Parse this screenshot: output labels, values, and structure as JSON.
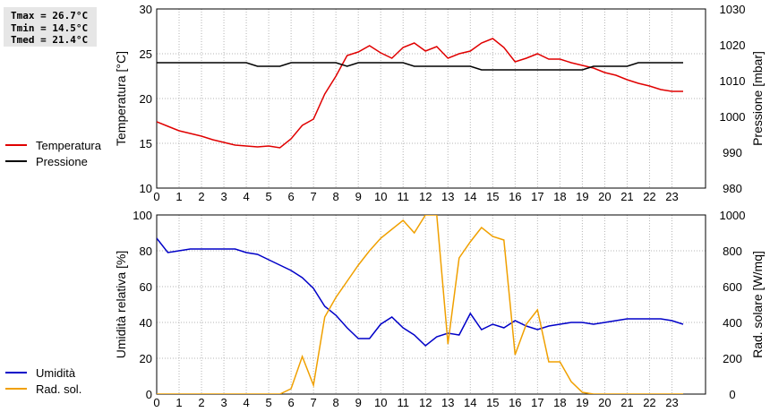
{
  "stats": {
    "tmax": "Tmax = 26.7°C",
    "tmin": "Tmin = 14.5°C",
    "tmed": "Tmed = 21.4°C"
  },
  "colors": {
    "red": "#e00000",
    "black": "#000000",
    "blue": "#0000c8",
    "orange": "#f0a000",
    "grid": "#b4b4b4"
  },
  "chart_data": [
    {
      "type": "line",
      "x": [
        0,
        0.5,
        1,
        1.5,
        2,
        2.5,
        3,
        3.5,
        4,
        4.5,
        5,
        5.5,
        6,
        6.5,
        7,
        7.5,
        8,
        8.5,
        9,
        9.5,
        10,
        10.5,
        11,
        11.5,
        12,
        12.5,
        13,
        13.5,
        14,
        14.5,
        15,
        15.5,
        16,
        16.5,
        17,
        17.5,
        18,
        18.5,
        19,
        19.5,
        20,
        20.5,
        21,
        21.5,
        22,
        22.5,
        23,
        23.5
      ],
      "xticks": [
        "0",
        "1",
        "2",
        "3",
        "4",
        "5",
        "6",
        "7",
        "8",
        "9",
        "10",
        "11",
        "12",
        "13",
        "14",
        "15",
        "16",
        "17",
        "18",
        "19",
        "20",
        "21",
        "22",
        "23"
      ],
      "xlim": [
        0,
        24.5
      ],
      "ylabel": "Temperatura [°C]",
      "ylim": [
        10,
        30
      ],
      "yticks": [
        "10",
        "15",
        "20",
        "25",
        "30"
      ],
      "y2label": "Pressione [mbar]",
      "y2lim": [
        980,
        1030
      ],
      "y2ticks": [
        "980",
        "990",
        "1000",
        "1010",
        "1020",
        "1030"
      ],
      "grid": true,
      "legend_position": "left",
      "series": [
        {
          "name": "Temperatura",
          "axis": "left",
          "color": "#e00000",
          "values": [
            17.4,
            16.9,
            16.4,
            16.1,
            15.8,
            15.4,
            15.1,
            14.8,
            14.7,
            14.6,
            14.7,
            14.5,
            15.5,
            17.0,
            17.7,
            20.5,
            22.5,
            24.8,
            25.2,
            25.9,
            25.1,
            24.5,
            25.7,
            26.2,
            25.3,
            25.8,
            24.5,
            25.0,
            25.3,
            26.2,
            26.7,
            25.7,
            24.1,
            24.5,
            25.0,
            24.4,
            24.4,
            24.0,
            23.7,
            23.4,
            22.9,
            22.6,
            22.1,
            21.7,
            21.4,
            21.0,
            20.8,
            20.8
          ]
        },
        {
          "name": "Pressione",
          "axis": "right",
          "color": "#000000",
          "values": [
            1015,
            1015,
            1015,
            1015,
            1015,
            1015,
            1015,
            1015,
            1015,
            1014,
            1014,
            1014,
            1015,
            1015,
            1015,
            1015,
            1015,
            1014,
            1015,
            1015,
            1015,
            1015,
            1015,
            1014,
            1014,
            1014,
            1014,
            1014,
            1014,
            1013,
            1013,
            1013,
            1013,
            1013,
            1013,
            1013,
            1013,
            1013,
            1013,
            1014,
            1014,
            1014,
            1014,
            1015,
            1015,
            1015,
            1015,
            1015
          ]
        }
      ]
    },
    {
      "type": "line",
      "x": [
        0,
        0.5,
        1,
        1.5,
        2,
        2.5,
        3,
        3.5,
        4,
        4.5,
        5,
        5.5,
        6,
        6.5,
        7,
        7.5,
        8,
        8.5,
        9,
        9.5,
        10,
        10.5,
        11,
        11.5,
        12,
        12.5,
        13,
        13.5,
        14,
        14.5,
        15,
        15.5,
        16,
        16.5,
        17,
        17.5,
        18,
        18.5,
        19,
        19.5,
        20,
        20.5,
        21,
        21.5,
        22,
        22.5,
        23,
        23.5
      ],
      "xticks": [
        "0",
        "1",
        "2",
        "3",
        "4",
        "5",
        "6",
        "7",
        "8",
        "9",
        "10",
        "11",
        "12",
        "13",
        "14",
        "15",
        "16",
        "17",
        "18",
        "19",
        "20",
        "21",
        "22",
        "23"
      ],
      "xlim": [
        0,
        24.5
      ],
      "ylabel": "Umidità relativa [%]",
      "ylim": [
        0,
        100
      ],
      "yticks": [
        "0",
        "20",
        "40",
        "60",
        "80",
        "100"
      ],
      "y2label": "Rad. solare [W/mq]",
      "y2lim": [
        0,
        1000
      ],
      "y2ticks": [
        "0",
        "200",
        "400",
        "600",
        "800",
        "1000"
      ],
      "grid": true,
      "legend_position": "left",
      "series": [
        {
          "name": "Umidità",
          "axis": "left",
          "color": "#0000c8",
          "values": [
            87,
            79,
            80,
            81,
            81,
            81,
            81,
            81,
            79,
            78,
            75,
            72,
            69,
            65,
            59,
            49,
            44,
            37,
            31,
            31,
            39,
            43,
            37,
            33,
            27,
            32,
            34,
            33,
            45,
            36,
            39,
            37,
            41,
            38,
            36,
            38,
            39,
            40,
            40,
            39,
            40,
            41,
            42,
            42,
            42,
            42,
            41,
            39
          ]
        },
        {
          "name": "Rad. sol.",
          "axis": "right",
          "color": "#f0a000",
          "values": [
            0,
            0,
            0,
            0,
            0,
            0,
            0,
            0,
            0,
            0,
            0,
            0,
            30,
            210,
            50,
            430,
            540,
            630,
            720,
            800,
            870,
            920,
            970,
            900,
            1000,
            1000,
            280,
            760,
            850,
            930,
            880,
            860,
            220,
            390,
            470,
            180,
            180,
            70,
            10,
            0,
            0,
            0,
            0,
            0,
            0,
            0,
            0,
            0
          ]
        }
      ]
    }
  ]
}
